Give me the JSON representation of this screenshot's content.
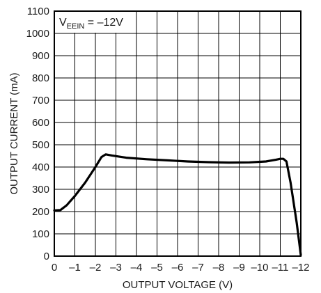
{
  "chart_data": {
    "type": "line",
    "xlabel": "OUTPUT VOLTAGE (V)",
    "ylabel": "OUTPUT CURRENT (mA)",
    "annotation": {
      "main": "V",
      "sub": "EEIN",
      "rest": " = –12V"
    },
    "xlim": [
      0,
      -12
    ],
    "ylim": [
      0,
      1100
    ],
    "x_ticks": [
      0,
      -1,
      -2,
      -3,
      -4,
      -5,
      -6,
      -7,
      -8,
      -9,
      -10,
      -11,
      -12
    ],
    "x_tick_labels": [
      "0",
      "–1",
      "–2",
      "–3",
      "–4",
      "–5",
      "–6",
      "–7",
      "–8",
      "–9",
      "–10",
      "–11",
      "–12"
    ],
    "y_ticks": [
      0,
      100,
      200,
      300,
      400,
      500,
      600,
      700,
      800,
      900,
      1000,
      1100
    ],
    "y_tick_labels": [
      "0",
      "100",
      "200",
      "300",
      "400",
      "500",
      "600",
      "700",
      "800",
      "900",
      "1000",
      "1100"
    ],
    "grid": true,
    "series": [
      {
        "x": [
          0,
          -0.3,
          -0.6,
          -1.0,
          -1.5,
          -2.0,
          -2.3,
          -2.5,
          -2.8,
          -3.5,
          -4.5,
          -5.5,
          -6.5,
          -7.5,
          -8.5,
          -9.5,
          -10.3,
          -10.8,
          -11.0,
          -11.15,
          -11.3,
          -11.5,
          -11.8,
          -12.0
        ],
        "y": [
          205,
          207,
          228,
          270,
          330,
          400,
          445,
          457,
          452,
          442,
          435,
          430,
          425,
          422,
          420,
          421,
          425,
          433,
          437,
          437,
          425,
          330,
          150,
          5
        ]
      }
    ]
  }
}
